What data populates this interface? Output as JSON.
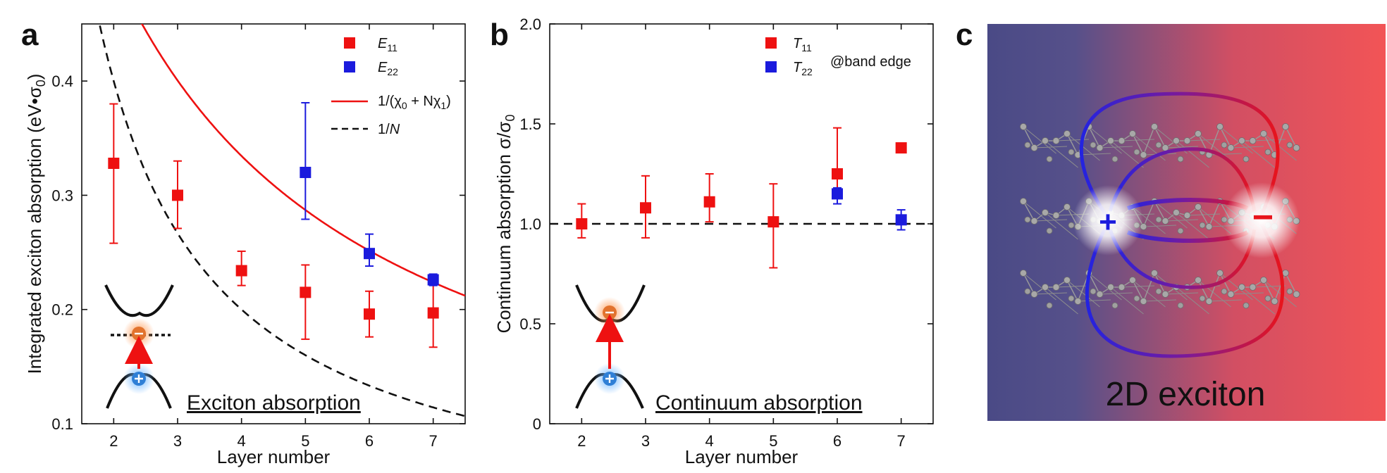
{
  "panels": [
    "a",
    "b",
    "c"
  ],
  "chart_data": [
    {
      "type": "scatter",
      "title": "",
      "xlabel": "Layer number",
      "ylabel": "Integrated exciton absorption (eV•σ0)",
      "xlim": [
        1.5,
        7.5
      ],
      "ylim": [
        0.1,
        0.45
      ],
      "xticks": [
        2,
        3,
        4,
        5,
        6,
        7
      ],
      "yticks": [
        0.1,
        0.2,
        0.3,
        0.4
      ],
      "series": [
        {
          "name": "E11",
          "color": "#ee1111",
          "x": [
            2,
            3,
            4,
            5,
            6,
            7
          ],
          "y": [
            0.328,
            0.3,
            0.234,
            0.215,
            0.196,
            0.197
          ],
          "err_upper": [
            0.38,
            0.33,
            0.251,
            0.239,
            0.216,
            0.227
          ],
          "err_lower": [
            0.258,
            0.271,
            0.221,
            0.174,
            0.176,
            0.167
          ]
        },
        {
          "name": "E22",
          "color": "#1b1bdd",
          "x": [
            5,
            6,
            7
          ],
          "y": [
            0.32,
            0.249,
            0.226
          ],
          "err_upper": [
            0.381,
            0.266,
            0.231
          ],
          "err_lower": [
            0.279,
            0.238,
            0.221
          ]
        }
      ],
      "curves": [
        {
          "name": "1/(χ0 + Nχ1)",
          "style": "solid",
          "color": "#ee1111",
          "chi0": 1.018,
          "chi1": 0.493
        },
        {
          "name": "1/N",
          "style": "dashed",
          "color": "#111111",
          "scale": 0.8
        }
      ],
      "legend": [
        "E11",
        "E22",
        "1/(χ0 + Nχ1)",
        "1/N"
      ],
      "annotation": "Exciton absorption"
    },
    {
      "type": "scatter",
      "title": "",
      "xlabel": "Layer number",
      "ylabel": "Continuum absorption σ/σ0",
      "xlim": [
        1.5,
        7.5
      ],
      "ylim": [
        0,
        2.0
      ],
      "xticks": [
        2,
        3,
        4,
        5,
        6,
        7
      ],
      "yticks": [
        0,
        0.5,
        1.0,
        1.5,
        2.0
      ],
      "yticklabels": [
        "0",
        "0.5",
        "1.0",
        "1.5",
        "2.0"
      ],
      "series": [
        {
          "name": "T11",
          "color": "#ee1111",
          "x": [
            2,
            3,
            4,
            5,
            6,
            7
          ],
          "y": [
            1.0,
            1.08,
            1.11,
            1.01,
            1.25,
            1.38
          ],
          "err_upper": [
            1.1,
            1.24,
            1.25,
            1.2,
            1.48,
            null
          ],
          "err_lower": [
            0.93,
            0.93,
            1.01,
            0.78,
            1.14,
            null
          ]
        },
        {
          "name": "T22",
          "color": "#1b1bdd",
          "x": [
            6,
            7
          ],
          "y": [
            1.15,
            1.02
          ],
          "err_upper": [
            1.18,
            1.07
          ],
          "err_lower": [
            1.1,
            0.97
          ]
        }
      ],
      "reference_line": {
        "y": 1.0,
        "style": "dashed"
      },
      "legend": [
        "T11",
        "T22"
      ],
      "note": "@band edge",
      "annotation": "Continuum absorption"
    }
  ],
  "panel_c": {
    "caption": "2D exciton",
    "plus_sign": "+",
    "minus_sign": "−",
    "gradient_left": "#4a4a86",
    "gradient_right": "#f25456"
  },
  "labels": {
    "a_ylabel_main": "Integrated exciton absorption (eV•σ",
    "a_ylabel_sub": "0",
    "a_ylabel_end": ")",
    "b_ylabel_main": "Continuum absorption σ/σ",
    "b_ylabel_sub": "0",
    "leg_E": "E",
    "leg_E11_sub": "11",
    "leg_E22_sub": "22",
    "leg_fit_main": "1/(χ",
    "leg_fit_sub0": "0",
    "leg_fit_mid": " + Nχ",
    "leg_fit_sub1": "1",
    "leg_fit_end": ")",
    "leg_invN_main": "1/",
    "leg_invN_N": "N",
    "leg_T": "T",
    "leg_T11_sub": "11",
    "leg_T22_sub": "22"
  },
  "colors": {
    "red": "#ee1111",
    "blue": "#1b1bdd",
    "black": "#111111"
  }
}
